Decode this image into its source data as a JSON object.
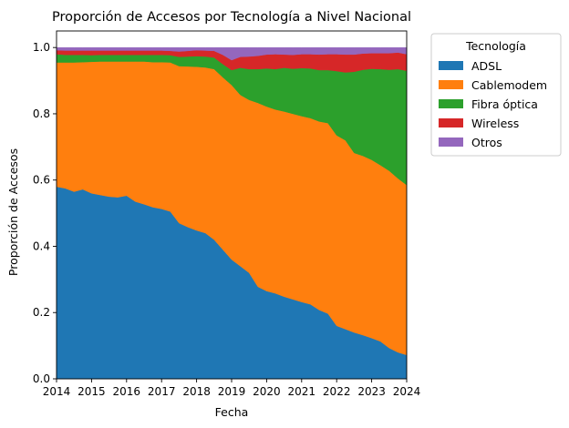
{
  "chart_data": {
    "type": "area",
    "stacked": true,
    "title": "Proporción de Accesos por Tecnología a Nivel Nacional",
    "xlabel": "Fecha",
    "ylabel": "Proporción de Accesos",
    "xlim": [
      2014.0,
      2024.0
    ],
    "ylim": [
      0.0,
      1.05
    ],
    "x_ticks": [
      "2014",
      "2015",
      "2016",
      "2017",
      "2018",
      "2019",
      "2020",
      "2021",
      "2022",
      "2023",
      "2024"
    ],
    "y_ticks": [
      "0.0",
      "0.2",
      "0.4",
      "0.6",
      "0.8",
      "1.0"
    ],
    "grid": false,
    "legend": {
      "title": "Tecnología",
      "placement": "outside-top-right"
    },
    "x": [
      2014.0,
      2014.25,
      2014.5,
      2014.75,
      2015.0,
      2015.25,
      2015.5,
      2015.75,
      2016.0,
      2016.25,
      2016.5,
      2016.75,
      2017.0,
      2017.25,
      2017.5,
      2017.75,
      2018.0,
      2018.25,
      2018.5,
      2018.75,
      2019.0,
      2019.25,
      2019.5,
      2019.75,
      2020.0,
      2020.25,
      2020.5,
      2020.75,
      2021.0,
      2021.25,
      2021.5,
      2021.75,
      2022.0,
      2022.25,
      2022.5,
      2022.75,
      2023.0,
      2023.25,
      2023.5,
      2023.75,
      2024.0
    ],
    "series": [
      {
        "name": "ADSL",
        "color": "#1f77b4",
        "values": [
          0.58,
          0.575,
          0.565,
          0.572,
          0.56,
          0.555,
          0.55,
          0.548,
          0.553,
          0.535,
          0.527,
          0.518,
          0.513,
          0.505,
          0.47,
          0.458,
          0.448,
          0.44,
          0.42,
          0.39,
          0.36,
          0.34,
          0.32,
          0.278,
          0.265,
          0.258,
          0.248,
          0.24,
          0.232,
          0.225,
          0.208,
          0.197,
          0.16,
          0.15,
          0.14,
          0.132,
          0.123,
          0.113,
          0.093,
          0.08,
          0.072
        ]
      },
      {
        "name": "Cablemodem",
        "color": "#ff7f0e",
        "values": [
          0.375,
          0.38,
          0.39,
          0.384,
          0.397,
          0.403,
          0.408,
          0.41,
          0.405,
          0.423,
          0.431,
          0.438,
          0.443,
          0.45,
          0.474,
          0.485,
          0.494,
          0.5,
          0.515,
          0.52,
          0.527,
          0.517,
          0.522,
          0.555,
          0.557,
          0.555,
          0.559,
          0.56,
          0.561,
          0.562,
          0.569,
          0.575,
          0.575,
          0.57,
          0.542,
          0.541,
          0.538,
          0.532,
          0.535,
          0.525,
          0.513
        ]
      },
      {
        "name": "Fibra óptica",
        "color": "#2ca02c",
        "values": [
          0.025,
          0.023,
          0.023,
          0.022,
          0.02,
          0.02,
          0.02,
          0.02,
          0.02,
          0.02,
          0.02,
          0.022,
          0.022,
          0.022,
          0.028,
          0.03,
          0.032,
          0.033,
          0.035,
          0.04,
          0.045,
          0.082,
          0.093,
          0.102,
          0.115,
          0.122,
          0.132,
          0.136,
          0.145,
          0.15,
          0.155,
          0.16,
          0.194,
          0.205,
          0.245,
          0.26,
          0.275,
          0.29,
          0.305,
          0.33,
          0.345
        ]
      },
      {
        "name": "Wireless",
        "color": "#d62728",
        "values": [
          0.012,
          0.013,
          0.013,
          0.013,
          0.014,
          0.013,
          0.013,
          0.013,
          0.013,
          0.013,
          0.013,
          0.013,
          0.013,
          0.013,
          0.016,
          0.017,
          0.018,
          0.018,
          0.02,
          0.028,
          0.03,
          0.033,
          0.038,
          0.04,
          0.042,
          0.045,
          0.04,
          0.042,
          0.042,
          0.043,
          0.047,
          0.048,
          0.051,
          0.054,
          0.052,
          0.049,
          0.047,
          0.048,
          0.05,
          0.05,
          0.05
        ]
      },
      {
        "name": "Otros",
        "color": "#9467bd",
        "values": [
          0.008,
          0.009,
          0.009,
          0.009,
          0.009,
          0.009,
          0.009,
          0.009,
          0.009,
          0.009,
          0.009,
          0.009,
          0.009,
          0.01,
          0.012,
          0.01,
          0.008,
          0.009,
          0.01,
          0.022,
          0.038,
          0.028,
          0.027,
          0.025,
          0.021,
          0.02,
          0.021,
          0.022,
          0.02,
          0.02,
          0.021,
          0.02,
          0.02,
          0.021,
          0.021,
          0.018,
          0.017,
          0.017,
          0.017,
          0.015,
          0.02
        ]
      }
    ]
  }
}
